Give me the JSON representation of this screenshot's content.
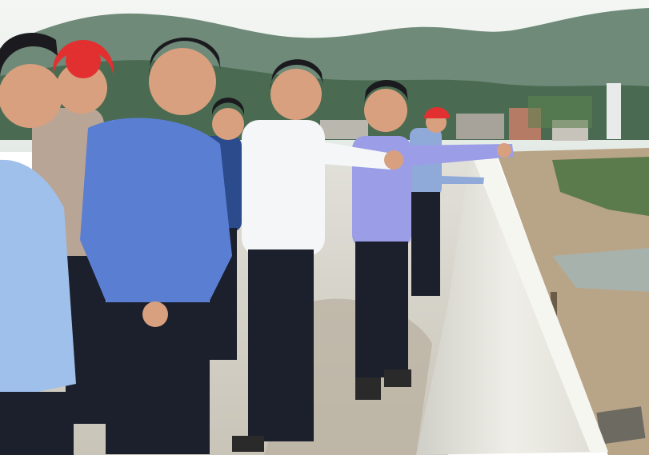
{
  "photo": {
    "subject": "",
    "helmet_text": "",
    "colors": {
      "sky": "#eef1ee",
      "mountain_far": "#6f8a78",
      "mountain_near": "#3f6148",
      "concrete": "#d9d8d0",
      "wet_concrete": "#b9b0a0",
      "parapet": "#e8e7e0",
      "dirt": "#b8a487",
      "water": "#a8b2ad",
      "blue_shirt": "#5a7fd2",
      "light_blue_shirt": "#9fc0ea",
      "white_shirt": "#f4f6f8",
      "lavender_shirt": "#9b9ee6",
      "trousers": "#1c1f2c",
      "hard_hat": "#e23030",
      "skin": "#d8a07e",
      "hair": "#1b1b1f"
    }
  }
}
